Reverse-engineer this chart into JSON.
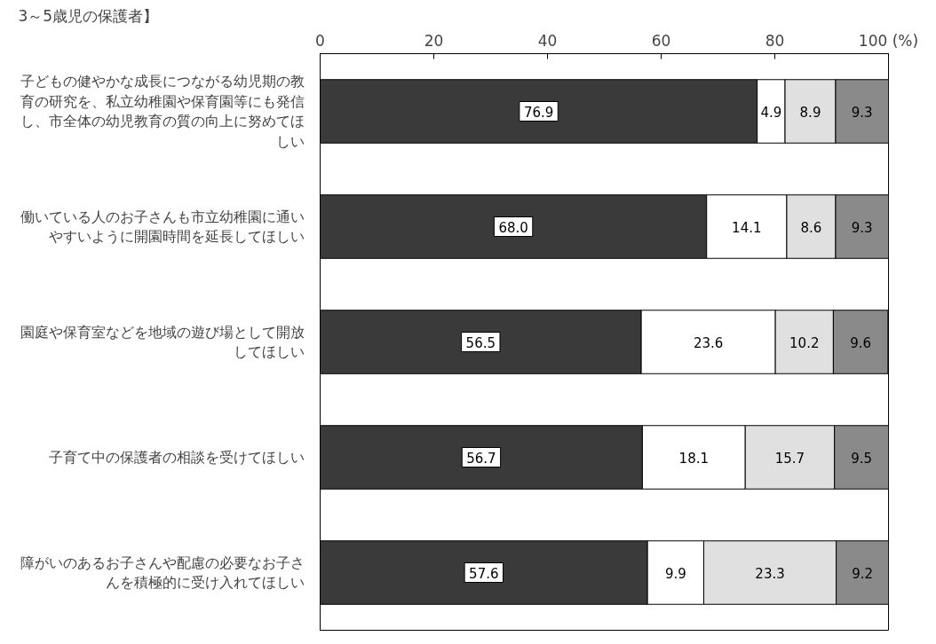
{
  "chart_data": {
    "type": "bar",
    "orientation": "horizontal",
    "stacked": true,
    "title": "3～5歳児の保護者】",
    "categories": [
      "子どもの健やかな成長につながる幼児期の教育の研究を、私立幼稚園や保育園等にも発信し、市全体の幼児教育の質の向上に努めてほしい",
      "働いている人のお子さんも市立幼稚園に通いやすいように開園時間を延長してほしい",
      "園庭や保育室などを地域の遊び場として開放してほしい",
      "子育て中の保護者の相談を受けてほしい",
      "障がいのあるお子さんや配慮の必要なお子さんを積極的に受け入れてほしい"
    ],
    "series": [
      {
        "color": "#3a3a3a",
        "values": [
          76.9,
          68.0,
          56.5,
          56.7,
          57.6
        ],
        "value_labels": [
          "76.9",
          "68.0",
          "56.5",
          "56.7",
          "57.6"
        ]
      },
      {
        "color": "#ffffff",
        "values": [
          4.9,
          14.1,
          23.6,
          18.1,
          9.9
        ],
        "value_labels": [
          "4.9",
          "14.1",
          "23.6",
          "18.1",
          "9.9"
        ]
      },
      {
        "color": "#e0e0e0",
        "values": [
          8.9,
          8.6,
          10.2,
          15.7,
          23.3
        ],
        "value_labels": [
          "8.9",
          "8.6",
          "10.2",
          "15.7",
          "23.3"
        ]
      },
      {
        "color": "#8a8a8a",
        "values": [
          9.3,
          9.3,
          9.6,
          9.5,
          9.2
        ],
        "value_labels": [
          "9.3",
          "9.3",
          "9.6",
          "9.5",
          "9.2"
        ]
      }
    ],
    "xlim": [
      0,
      100
    ],
    "xticks": [
      0,
      20,
      40,
      60,
      80,
      {
        "value": 100,
        "label": "100 (%)"
      }
    ],
    "grid": false
  }
}
